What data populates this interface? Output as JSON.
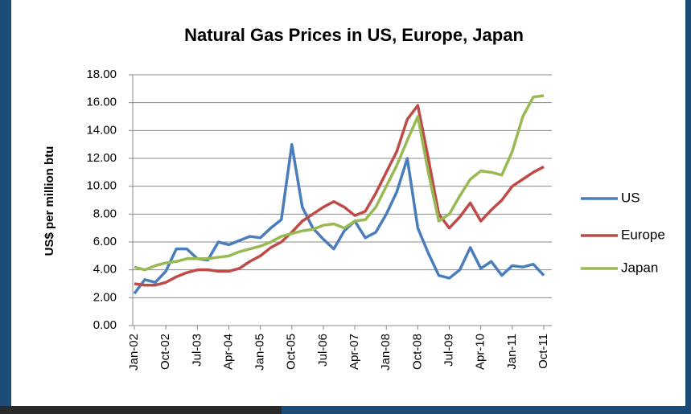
{
  "chart_data": {
    "type": "line",
    "title": "Natural Gas Prices in US, Europe, Japan",
    "y_label": "US$ per million btu",
    "categories": [
      "Jan-02",
      null,
      null,
      "Oct-02",
      null,
      null,
      "Jul-03",
      null,
      null,
      "Apr-04",
      null,
      null,
      "Jan-05",
      null,
      null,
      "Oct-05",
      null,
      null,
      "Jul-06",
      null,
      null,
      "Apr-07",
      null,
      null,
      "Jan-08",
      null,
      null,
      "Oct-08",
      null,
      null,
      "Jul-09",
      null,
      null,
      "Apr-10",
      null,
      null,
      "Jan-11",
      null,
      null,
      "Oct-11"
    ],
    "series": [
      {
        "name": "US",
        "color": "#4a7ebb",
        "values": [
          2.3,
          3.3,
          3.1,
          3.9,
          5.5,
          5.5,
          4.8,
          4.7,
          6.0,
          5.8,
          6.1,
          6.4,
          6.3,
          7.0,
          7.6,
          13.0,
          8.5,
          7.0,
          6.2,
          5.5,
          6.8,
          7.5,
          6.3,
          6.7,
          8.0,
          9.6,
          12.0,
          7.0,
          5.2,
          3.6,
          3.4,
          4.0,
          5.6,
          4.1,
          4.6,
          3.6,
          4.3,
          4.2,
          4.4,
          3.6
        ]
      },
      {
        "name": "Europe",
        "color": "#be4b48",
        "values": [
          3.0,
          2.9,
          2.9,
          3.1,
          3.5,
          3.8,
          4.0,
          4.0,
          3.9,
          3.9,
          4.1,
          4.6,
          5.0,
          5.6,
          6.0,
          6.7,
          7.5,
          8.0,
          8.5,
          8.9,
          8.5,
          7.9,
          8.2,
          9.5,
          11.0,
          12.5,
          14.8,
          15.8,
          12.0,
          8.0,
          7.0,
          7.8,
          8.8,
          7.5,
          8.3,
          9.0,
          10.0,
          10.5,
          11.0,
          11.4
        ]
      },
      {
        "name": "Japan",
        "color": "#98b954",
        "values": [
          4.2,
          4.0,
          4.3,
          4.5,
          4.6,
          4.8,
          4.8,
          4.8,
          4.9,
          5.0,
          5.3,
          5.5,
          5.7,
          6.0,
          6.4,
          6.6,
          6.8,
          6.9,
          7.2,
          7.3,
          7.0,
          7.5,
          7.6,
          8.5,
          10.0,
          11.5,
          13.3,
          15.0,
          11.0,
          7.5,
          8.0,
          9.3,
          10.5,
          11.1,
          11.0,
          10.8,
          12.5,
          15.0,
          16.4,
          16.5
        ]
      }
    ],
    "ylim": [
      0,
      18
    ],
    "yticks": [
      {
        "value": 0,
        "label": "0.00"
      },
      {
        "value": 2,
        "label": "2.00"
      },
      {
        "value": 4,
        "label": "4.00"
      },
      {
        "value": 6,
        "label": "6.00"
      },
      {
        "value": 8,
        "label": "8.00"
      },
      {
        "value": 10,
        "label": "10.00"
      },
      {
        "value": 12,
        "label": "12.00"
      },
      {
        "value": 14,
        "label": "14.00"
      },
      {
        "value": 16,
        "label": "16.00"
      },
      {
        "value": 18,
        "label": "18.00"
      }
    ],
    "grid": true,
    "legend": "right"
  }
}
